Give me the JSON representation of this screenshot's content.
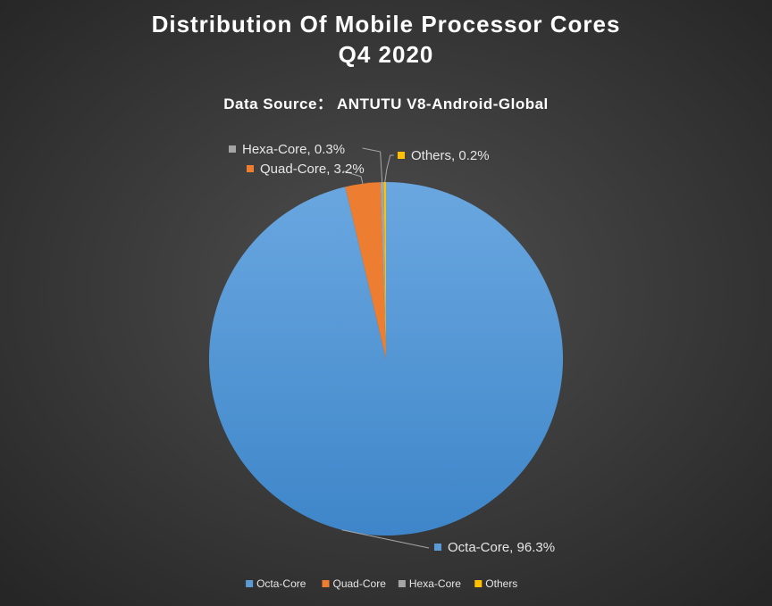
{
  "chart_data": {
    "type": "pie",
    "title": "Distribution Of Mobile Processor Cores",
    "title_line2": "Q4 2020",
    "subtitle": "Data Source： ANTUTU V8-Android-Global",
    "slices": [
      {
        "name": "Octa-Core",
        "value": 96.3,
        "color": "#5b9bd5",
        "label": "Octa-Core, 96.3%"
      },
      {
        "name": "Quad-Core",
        "value": 3.2,
        "color": "#ed7d31",
        "label": "Quad-Core, 3.2%"
      },
      {
        "name": "Hexa-Core",
        "value": 0.3,
        "color": "#a5a5a5",
        "label": "Hexa-Core, 0.3%"
      },
      {
        "name": "Others",
        "value": 0.2,
        "color": "#ffc000",
        "label": "Others, 0.2%"
      }
    ],
    "legend_position": "bottom",
    "data_labels": "outside with leader lines"
  },
  "colors": {
    "background": "#3a3a3a",
    "text": "#ffffff",
    "label_text": "#e6e6e6",
    "leader_line": "#a6a6a6"
  }
}
